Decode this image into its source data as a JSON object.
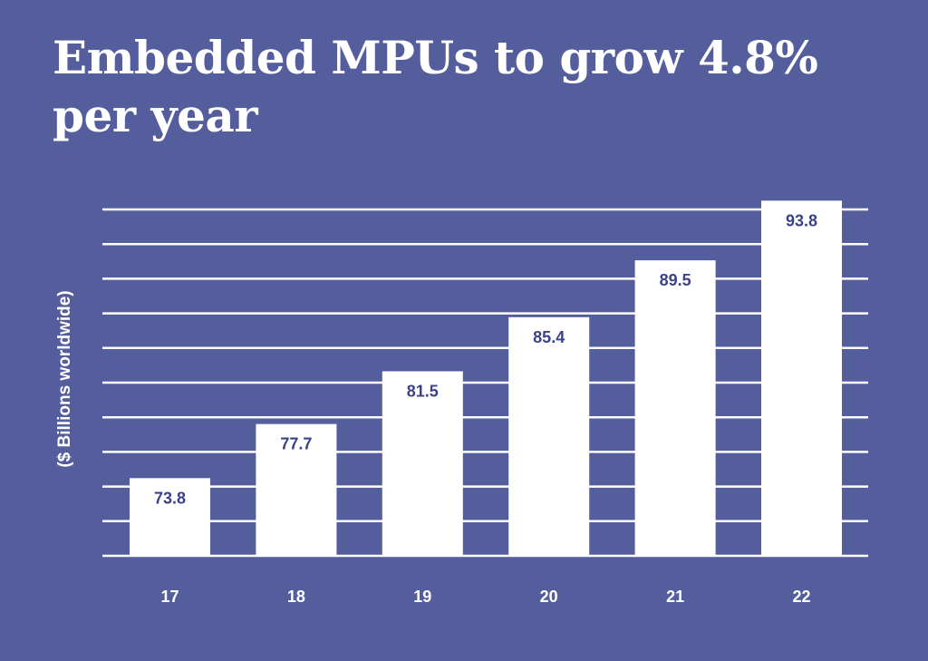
{
  "title": "Embedded MPUs to grow 4.8% per year",
  "colors": {
    "background": "#545e9c",
    "bar": "#ffffff",
    "grid": "#ffffff",
    "value_label": "#3a438a",
    "text": "#ffffff"
  },
  "chart_data": {
    "type": "bar",
    "title": "Embedded MPUs to grow 4.8% per year",
    "xlabel": "",
    "ylabel": "($ Billions worldwide)",
    "categories": [
      "17",
      "18",
      "19",
      "20",
      "21",
      "22"
    ],
    "values": [
      73.8,
      77.7,
      81.5,
      85.4,
      89.5,
      93.8
    ],
    "data_labels": [
      "73.8",
      "77.7",
      "81.5",
      "85.4",
      "89.5",
      "93.8"
    ],
    "grid": true,
    "legend": "none"
  }
}
